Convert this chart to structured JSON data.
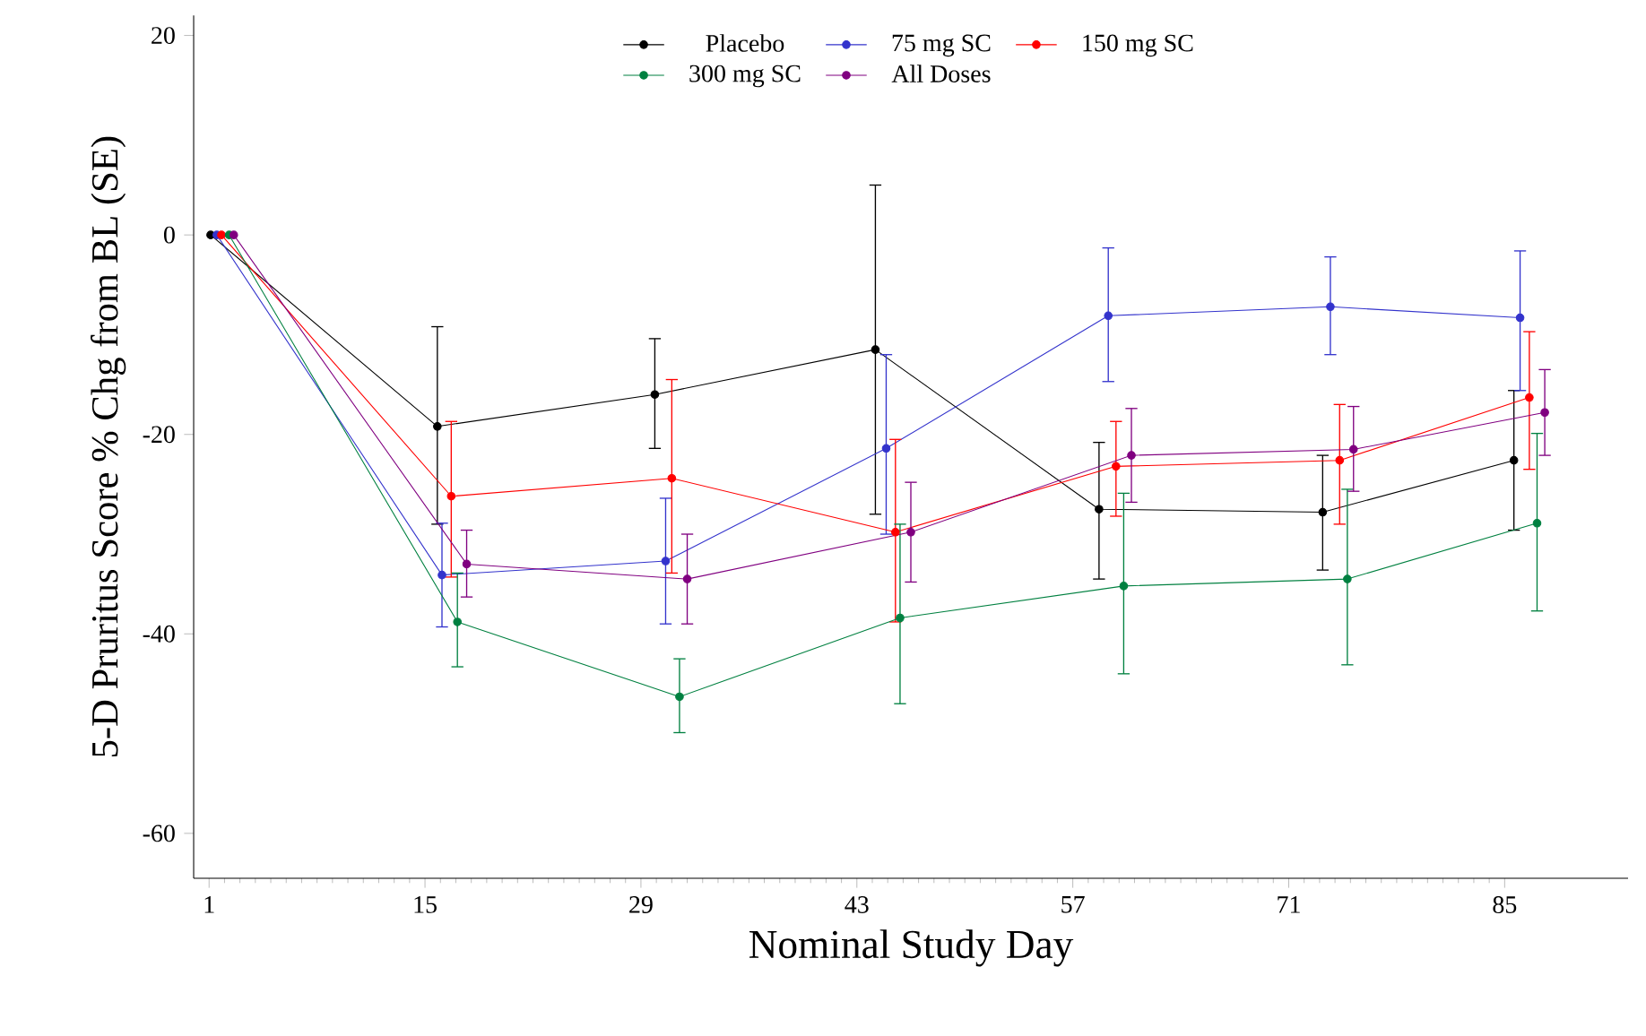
{
  "chart_data": {
    "type": "line",
    "xlabel": "Nominal Study Day",
    "ylabel": "5-D Pruritus Score % Chg from BL (SE)",
    "xlim": [
      0,
      93
    ],
    "ylim": [
      -64.5,
      22
    ],
    "xticks": [
      1,
      15,
      29,
      43,
      57,
      71,
      85
    ],
    "yticks": [
      -60,
      -40,
      -20,
      0,
      20
    ],
    "legend": "top",
    "marker": "circle",
    "line_style": "solid",
    "grid": false,
    "series": [
      {
        "name": "Placebo",
        "color": "#000000",
        "x": [
          1.1,
          15.8,
          29.9,
          44.2,
          58.7,
          73.2,
          85.6
        ],
        "values": [
          0,
          -19.2,
          -16,
          -11.5,
          -27.5,
          -27.8,
          -22.6
        ],
        "errors": [
          null,
          [
            -29,
            -9.2
          ],
          [
            -21.4,
            -10.4
          ],
          [
            -28,
            5
          ],
          [
            -34.5,
            -20.8
          ],
          [
            -33.6,
            -22.1
          ],
          [
            -29.6,
            -15.6
          ]
        ]
      },
      {
        "name": "75 mg SC",
        "color": "#3333cc",
        "x": [
          1.5,
          16.1,
          30.6,
          44.9,
          59.3,
          73.7,
          86.0
        ],
        "values": [
          0,
          -34.1,
          -32.7,
          -21.4,
          -8.1,
          -7.2,
          -8.3
        ],
        "errors": [
          null,
          [
            -39.3,
            -28.9
          ],
          [
            -39,
            -26.4
          ],
          [
            -30,
            -12
          ],
          [
            -14.7,
            -1.3
          ],
          [
            -12,
            -2.2
          ],
          [
            -15.6,
            -1.6
          ]
        ]
      },
      {
        "name": "150 mg SC",
        "color": "#ff0000",
        "x": [
          1.8,
          16.7,
          31.0,
          45.5,
          59.8,
          74.3,
          86.6
        ],
        "values": [
          0,
          -26.2,
          -24.4,
          -29.8,
          -23.2,
          -22.6,
          -16.3
        ],
        "errors": [
          null,
          [
            -34.3,
            -18.7
          ],
          [
            -33.9,
            -14.5
          ],
          [
            -38.8,
            -20.5
          ],
          [
            -28.2,
            -18.7
          ],
          [
            -29,
            -17
          ],
          [
            -23.5,
            -9.7
          ]
        ]
      },
      {
        "name": "300 mg SC",
        "color": "#008040",
        "x": [
          2.3,
          17.1,
          31.5,
          45.8,
          60.3,
          74.8,
          87.1
        ],
        "values": [
          0,
          -38.8,
          -46.3,
          -38.4,
          -35.2,
          -34.5,
          -28.9
        ],
        "errors": [
          null,
          [
            -43.3,
            -33.9
          ],
          [
            -49.9,
            -42.5
          ],
          [
            -47,
            -29
          ],
          [
            -44,
            -25.9
          ],
          [
            -43.1,
            -25.5
          ],
          [
            -37.7,
            -19.9
          ]
        ]
      },
      {
        "name": "All Doses",
        "color": "#800080",
        "x": [
          2.6,
          17.7,
          32.0,
          46.5,
          60.8,
          75.2,
          87.6
        ],
        "values": [
          0,
          -33,
          -34.5,
          -29.8,
          -22.1,
          -21.5,
          -17.8
        ],
        "errors": [
          null,
          [
            -36.3,
            -29.6
          ],
          [
            -39,
            -30
          ],
          [
            -34.8,
            -24.8
          ],
          [
            -26.8,
            -17.4
          ],
          [
            -25.7,
            -17.2
          ],
          [
            -22.1,
            -13.5
          ]
        ]
      }
    ]
  }
}
